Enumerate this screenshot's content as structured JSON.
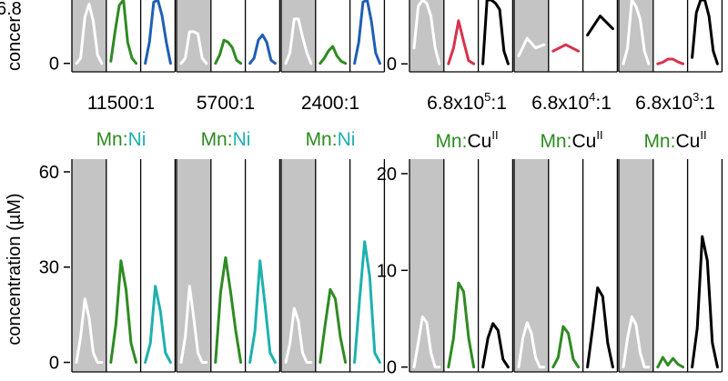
{
  "colors": {
    "gray_panel": "#c4c4c4",
    "white_trace": "#ffffff",
    "mn_green": "#2e8b22",
    "ni_blue": "#1f5fb4",
    "ni_teal": "#1fb0b0",
    "cu_red": "#d6334c",
    "cu_black": "#000000"
  },
  "labels": {
    "ylabel": "concentration (µM)",
    "ylabel_top_visible": "concer",
    "ylabel_top_prefix": "6.8",
    "ni_ratios": [
      "11500:1",
      "5700:1",
      "2400:1"
    ],
    "cu_ratios": [
      {
        "base": "6.8x10",
        "exp": "5",
        "tail": ":1"
      },
      {
        "base": "6.8x10",
        "exp": "4",
        "tail": ":1"
      },
      {
        "base": "6.8x10",
        "exp": "3",
        "tail": ":1"
      }
    ],
    "ni_pair": {
      "mn": "Mn",
      "sep": ":",
      "metal": "Ni"
    },
    "cu_pair": {
      "mn": "Mn",
      "sep": ":",
      "metal": "Cu",
      "sup": "II"
    }
  },
  "chart_data": [
    {
      "id": "top-left",
      "type": "line",
      "ylim": [
        -8,
        60
      ],
      "yticks": [
        0
      ],
      "groups": [
        {
          "series": [
            {
              "color": "white_trace",
              "values": [
                0,
                5,
                44,
                56,
                40,
                8,
                0
              ]
            },
            {
              "color": "mn_green",
              "values": [
                2,
                30,
                55,
                60,
                20,
                5,
                0
              ]
            },
            {
              "color": "ni_blue",
              "values": [
                0,
                20,
                58,
                60,
                45,
                20,
                0
              ]
            }
          ]
        },
        {
          "series": [
            {
              "color": "white_trace",
              "values": [
                0,
                5,
                30,
                30,
                28,
                5,
                0
              ]
            },
            {
              "color": "mn_green",
              "values": [
                0,
                8,
                22,
                20,
                15,
                3,
                0
              ]
            },
            {
              "color": "ni_blue",
              "values": [
                0,
                5,
                22,
                27,
                20,
                3,
                0
              ]
            }
          ]
        },
        {
          "series": [
            {
              "color": "white_trace",
              "values": [
                0,
                10,
                42,
                42,
                25,
                10,
                0
              ]
            },
            {
              "color": "mn_green",
              "values": [
                0,
                5,
                12,
                16,
                7,
                2,
                0
              ]
            },
            {
              "color": "ni_blue",
              "values": [
                0,
                20,
                58,
                60,
                40,
                10,
                0
              ]
            }
          ]
        }
      ]
    },
    {
      "id": "top-right",
      "type": "line",
      "ylim": [
        -2.5,
        20
      ],
      "yticks": [
        0
      ],
      "groups": [
        {
          "series": [
            {
              "color": "white_trace",
              "values": [
                5,
                18,
                20,
                19,
                15,
                5,
                0
              ]
            },
            {
              "color": "cu_red",
              "values": [
                0,
                5,
                13.5,
                7,
                1,
                0
              ]
            },
            {
              "color": "cu_black",
              "values": [
                0,
                20,
                20,
                19,
                17,
                4,
                0
              ]
            }
          ]
        },
        {
          "series": [
            {
              "color": "white_trace",
              "values": [
                2.5,
                8,
                5,
                6
              ]
            },
            {
              "color": "cu_red",
              "values": [
                4,
                6,
                4
              ]
            },
            {
              "color": "cu_black",
              "values": [
                9,
                15,
                11
              ]
            }
          ]
        },
        {
          "series": [
            {
              "color": "white_trace",
              "values": [
                0,
                5,
                20,
                18,
                14,
                4,
                0
              ]
            },
            {
              "color": "cu_red",
              "values": [
                0,
                0.5,
                1.5,
                1.5,
                0.6,
                0
              ]
            },
            {
              "color": "cu_black",
              "values": [
                2,
                16,
                20,
                20,
                15,
                4,
                0
              ]
            }
          ]
        }
      ]
    },
    {
      "id": "bottom-left",
      "type": "line",
      "ylim": [
        -3,
        64
      ],
      "yticks": [
        0,
        30,
        60
      ],
      "groups": [
        {
          "series": [
            {
              "color": "white_trace",
              "values": [
                0,
                8,
                20,
                14,
                3,
                0,
                0
              ]
            },
            {
              "color": "mn_green",
              "values": [
                0,
                12,
                32,
                23,
                6,
                0
              ]
            },
            {
              "color": "ni_teal",
              "values": [
                0,
                6,
                24,
                16,
                3,
                0
              ]
            }
          ]
        },
        {
          "series": [
            {
              "color": "white_trace",
              "values": [
                0,
                8,
                24,
                14,
                3,
                0,
                0
              ]
            },
            {
              "color": "mn_green",
              "values": [
                0,
                22,
                33,
                22,
                10,
                0
              ]
            },
            {
              "color": "ni_teal",
              "values": [
                0,
                10,
                32,
                18,
                3,
                0
              ]
            }
          ]
        },
        {
          "series": [
            {
              "color": "white_trace",
              "values": [
                0,
                6,
                17,
                13,
                3,
                0,
                0
              ]
            },
            {
              "color": "mn_green",
              "values": [
                0,
                12,
                23,
                20,
                8,
                0
              ]
            },
            {
              "color": "ni_teal",
              "values": [
                0,
                20,
                38,
                27,
                3,
                0
              ]
            }
          ]
        }
      ]
    },
    {
      "id": "bottom-right",
      "type": "line",
      "ylim": [
        -0.5,
        21.5
      ],
      "yticks": [
        0,
        10,
        20
      ],
      "groups": [
        {
          "series": [
            {
              "color": "white_trace",
              "values": [
                0,
                2.5,
                5.2,
                4.6,
                1.5,
                0,
                0
              ]
            },
            {
              "color": "mn_green",
              "values": [
                0,
                3,
                8.7,
                7.8,
                3,
                0
              ]
            },
            {
              "color": "cu_black",
              "values": [
                0,
                3,
                4.5,
                3.8,
                0.8,
                0
              ]
            }
          ]
        },
        {
          "series": [
            {
              "color": "white_trace",
              "values": [
                0,
                3,
                4.6,
                3.5,
                1,
                0,
                0
              ]
            },
            {
              "color": "mn_green",
              "values": [
                0,
                1,
                4.2,
                3.5,
                0.8,
                0
              ]
            },
            {
              "color": "cu_black",
              "values": [
                0,
                4,
                8.2,
                7.3,
                2.5,
                0
              ]
            }
          ]
        },
        {
          "series": [
            {
              "color": "white_trace",
              "values": [
                0,
                3,
                5.2,
                4.4,
                1.5,
                0,
                0
              ]
            },
            {
              "color": "mn_green",
              "values": [
                0,
                1,
                0.2,
                0.9,
                0.3,
                0
              ]
            },
            {
              "color": "cu_black",
              "values": [
                0,
                4,
                13.5,
                11,
                2.5,
                0
              ]
            }
          ]
        }
      ]
    }
  ]
}
